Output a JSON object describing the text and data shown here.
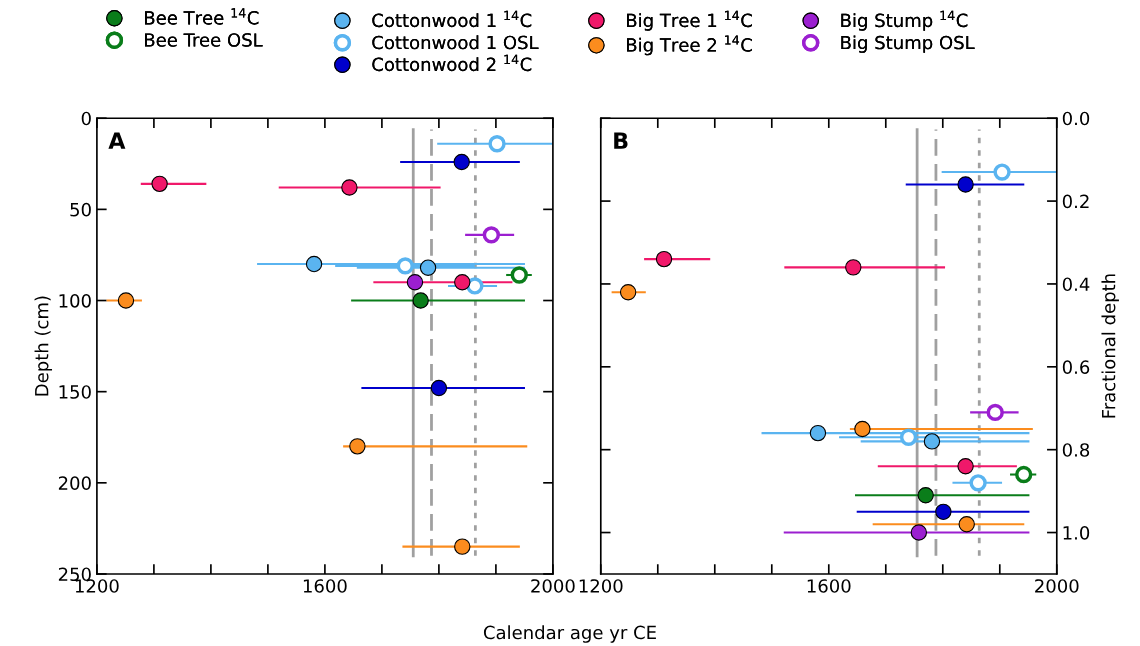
{
  "chart_data": [
    {
      "type": "scatter",
      "title": "A",
      "xlabel": "Calendar age yr CE",
      "ylabel": "Depth (cm)",
      "legend": "top",
      "marker": "circle",
      "xlim": [
        1200,
        2000
      ],
      "xticks": [
        1200,
        {
          "value": 1300,
          "label": null
        },
        {
          "value": 1400,
          "label": null
        },
        {
          "value": 1500,
          "label": null
        },
        1600,
        {
          "value": 1700,
          "label": null
        },
        {
          "value": 1800,
          "label": null
        },
        {
          "value": 1900,
          "label": null
        },
        2000
      ],
      "ylim": [
        250,
        0
      ],
      "yticks": [
        0,
        50,
        100,
        150,
        200,
        250
      ],
      "grid": false,
      "ref_lines": [
        {
          "axis": "x",
          "value": 1755,
          "color": "#a0a0a0",
          "line_style": "solid"
        },
        {
          "axis": "x",
          "value": 1787,
          "color": "#a0a0a0",
          "line_style": "dashed"
        },
        {
          "axis": "x",
          "value": 1864,
          "color": "#a0a0a0",
          "line_style": "dotted"
        }
      ],
      "series": [
        {
          "name": "Bee Tree $^{14}$C",
          "color": "#0a7d1a",
          "x": [
            1768
          ],
          "values": [
            100
          ],
          "xerrors": [
            [
              1646,
              1951
            ]
          ]
        },
        {
          "name": "Bee Tree OSL",
          "color": "#0a7d1a",
          "colors": [
            "#ffffff"
          ],
          "x": [
            1941
          ],
          "values": [
            86
          ],
          "xerrors": [
            [
              1918,
              1963
            ]
          ]
        },
        {
          "name": "Cottonwood 1 $^{14}$C",
          "color": "#5ab4f0",
          "x": [
            1581,
            1781
          ],
          "values": [
            80,
            82
          ],
          "xerrors": [
            [
              1481,
              1951
            ],
            [
              1656,
              1951
            ]
          ]
        },
        {
          "name": "Cottonwood 1 OSL",
          "color": "#5ab4f0",
          "colors": [
            "#ffffff",
            "#ffffff",
            "#ffffff"
          ],
          "x": [
            1902,
            1741,
            1863
          ],
          "values": [
            14,
            81,
            92
          ],
          "xerrors": [
            [
              1797,
              2000
            ],
            [
              1618,
              1863
            ],
            [
              1816,
              1902
            ]
          ]
        },
        {
          "name": "Cottonwood 2 $^{14}$C",
          "color": "#0000cc",
          "x": [
            1840,
            1800
          ],
          "values": [
            24,
            148
          ],
          "xerrors": [
            [
              1732,
              1942
            ],
            [
              1664,
              1951
            ]
          ]
        },
        {
          "name": "Big Tree 1 $^{14}$C",
          "color": "#f0186a",
          "x": [
            1310,
            1643,
            1841
          ],
          "values": [
            36,
            38,
            90
          ],
          "xerrors": [
            [
              1277,
              1392
            ],
            [
              1519,
              1803
            ],
            [
              1685,
              1929
            ]
          ]
        },
        {
          "name": "Big Tree 2 $^{14}$C",
          "color": "#fb8c1e",
          "x": [
            1251,
            1657,
            1841
          ],
          "values": [
            100,
            180,
            235
          ],
          "xerrors": [
            [
              1217,
              1279
            ],
            [
              1632,
              1955
            ],
            [
              1736,
              1942
            ]
          ]
        },
        {
          "name": "Big Stump $^{14}$C",
          "color": "#9b1fd0",
          "x": [
            1758
          ],
          "values": [
            90
          ],
          "xerrors": [
            null
          ]
        },
        {
          "name": "Big Stump OSL",
          "color": "#9b1fd0",
          "colors": [
            "#ffffff"
          ],
          "x": [
            1892
          ],
          "values": [
            64
          ],
          "xerrors": [
            [
              1846,
              1932
            ]
          ]
        }
      ]
    },
    {
      "type": "scatter",
      "title": "B",
      "ylabel": "Fractional depth",
      "marker": "circle",
      "xlim": [
        1200,
        2000
      ],
      "xticks": [
        1200,
        {
          "value": 1300,
          "label": null
        },
        {
          "value": 1400,
          "label": null
        },
        {
          "value": 1500,
          "label": null
        },
        1600,
        {
          "value": 1700,
          "label": null
        },
        {
          "value": 1800,
          "label": null
        },
        {
          "value": 1900,
          "label": null
        },
        2000
      ],
      "ylim": [
        1.1,
        0
      ],
      "yticks": [
        {
          "value": 0,
          "label": "0.0"
        },
        0.2,
        0.4,
        0.6,
        0.8,
        {
          "value": 1,
          "label": "1.0"
        }
      ],
      "grid": false,
      "ref_lines": [
        {
          "axis": "x",
          "value": 1755,
          "color": "#a0a0a0",
          "line_style": "solid"
        },
        {
          "axis": "x",
          "value": 1788,
          "color": "#a0a0a0",
          "line_style": "dashed"
        },
        {
          "axis": "x",
          "value": 1864,
          "color": "#a0a0a0",
          "line_style": "dotted"
        }
      ],
      "series": [
        {
          "color": "#0a7d1a",
          "x": [
            1770
          ],
          "values": [
            0.91
          ],
          "xerrors": [
            [
              1646,
              1952
            ]
          ]
        },
        {
          "color": "#0a7d1a",
          "colors": [
            "#ffffff"
          ],
          "x": [
            1942
          ],
          "values": [
            0.86
          ],
          "xerrors": [
            [
              1918,
              1964
            ]
          ]
        },
        {
          "color": "#5ab4f0",
          "x": [
            1581,
            1781
          ],
          "values": [
            0.76,
            0.78
          ],
          "xerrors": [
            [
              1482,
              1952
            ],
            [
              1656,
              1952
            ]
          ]
        },
        {
          "color": "#5ab4f0",
          "colors": [
            "#ffffff",
            "#ffffff",
            "#ffffff"
          ],
          "x": [
            1904,
            1740,
            1862
          ],
          "values": [
            0.13,
            0.77,
            0.88
          ],
          "xerrors": [
            [
              1798,
              2000
            ],
            [
              1618,
              1864
            ],
            [
              1817,
              1904
            ]
          ]
        },
        {
          "color": "#0000cc",
          "x": [
            1840,
            1801
          ],
          "values": [
            0.16,
            0.95
          ],
          "xerrors": [
            [
              1735,
              1943
            ],
            [
              1649,
              1952
            ]
          ]
        },
        {
          "color": "#f0186a",
          "x": [
            1311,
            1643,
            1840
          ],
          "values": [
            0.34,
            0.36,
            0.84
          ],
          "xerrors": [
            [
              1276,
              1392
            ],
            [
              1522,
              1804
            ],
            [
              1686,
              1930
            ]
          ]
        },
        {
          "color": "#fb8c1e",
          "x": [
            1248,
            1659,
            1842
          ],
          "values": [
            0.42,
            0.75,
            0.98
          ],
          "xerrors": [
            [
              1219,
              1279
            ],
            [
              1637,
              1958
            ],
            [
              1677,
              1943
            ]
          ]
        },
        {
          "color": "#9b1fd0",
          "x": [
            1758
          ],
          "values": [
            1.0
          ],
          "xerrors": [
            [
              1521,
              1952
            ]
          ]
        },
        {
          "color": "#9b1fd0",
          "colors": [
            "#ffffff"
          ],
          "x": [
            1892
          ],
          "values": [
            0.71
          ],
          "xerrors": [
            [
              1848,
              1933
            ]
          ]
        }
      ]
    }
  ]
}
